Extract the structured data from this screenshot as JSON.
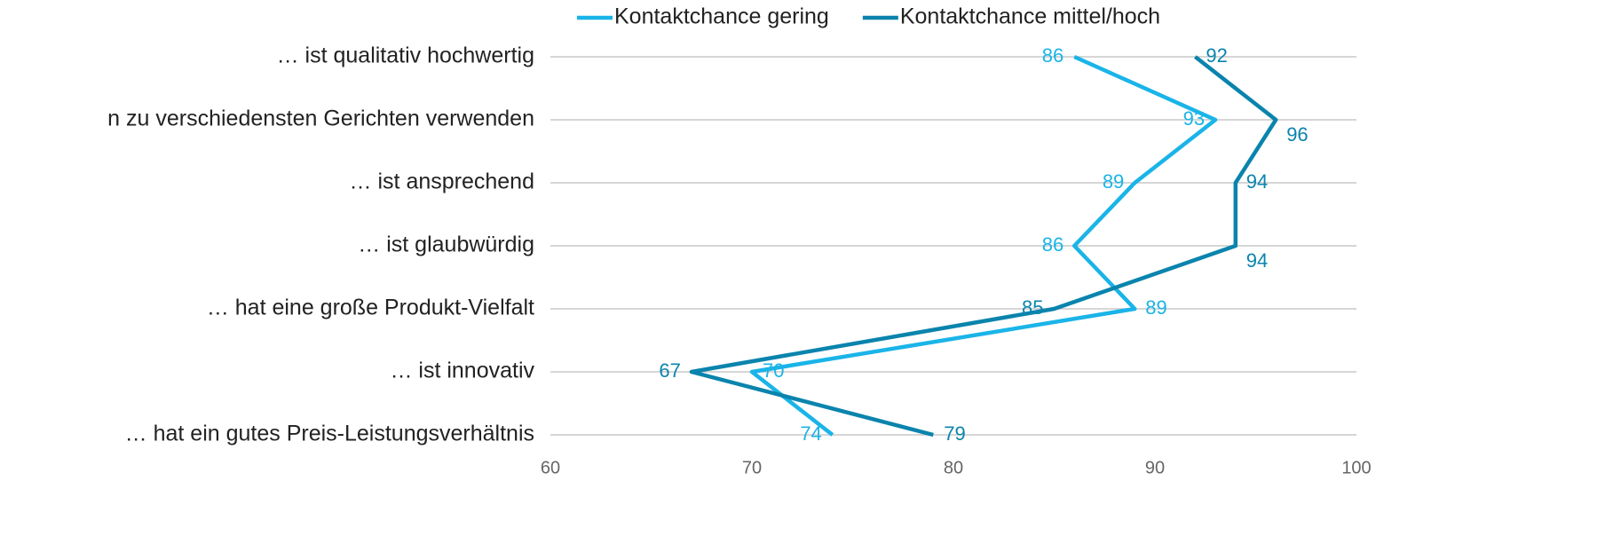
{
  "chart_data": {
    "type": "line",
    "orientation": "horizontal",
    "categories": [
      "… ist qualitativ hochwertig",
      "n zu verschiedensten Gerichten verwenden",
      "… ist ansprechend",
      "… ist glaubwürdig",
      "… hat eine große Produkt-Vielfalt",
      "… ist innovativ",
      "… hat ein gutes Preis-Leistungsverhältnis"
    ],
    "series": [
      {
        "name": "Kontaktchance gering",
        "color": "#1ab4e8",
        "values": [
          86,
          93,
          89,
          86,
          89,
          70,
          74
        ]
      },
      {
        "name": "Kontaktchance mittel/hoch",
        "color": "#0a84ad",
        "values": [
          92,
          96,
          94,
          94,
          85,
          67,
          79
        ]
      }
    ],
    "xlim": [
      60,
      100
    ],
    "xticks": [
      60,
      70,
      80,
      90,
      100
    ],
    "grid": true,
    "legend": "top"
  }
}
